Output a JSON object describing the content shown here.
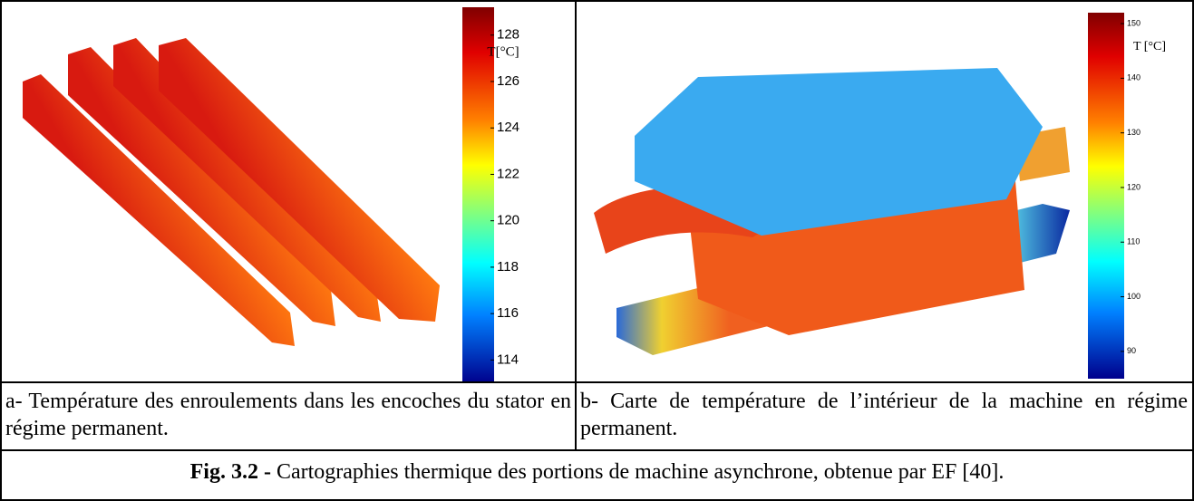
{
  "panels": [
    {
      "colorbar": {
        "label": "T[°C]",
        "range": [
          113,
          129.2
        ],
        "ticks": [
          114,
          116,
          118,
          120,
          122,
          124,
          126,
          128
        ]
      },
      "caption": "a- Température des enroulements dans les encoches du stator en régime permanent."
    },
    {
      "colorbar": {
        "label": "T [°C]",
        "range": [
          85,
          152
        ],
        "ticks": [
          90,
          100,
          110,
          120,
          130,
          140,
          150
        ]
      },
      "caption": "b- Carte de température de l’intérieur de la machine en régime permanent."
    }
  ],
  "figure_caption": {
    "label": "Fig. 3.2 -",
    "text": " Cartographies thermique des portions de machine asynchrone, obtenue par EF [40]."
  }
}
